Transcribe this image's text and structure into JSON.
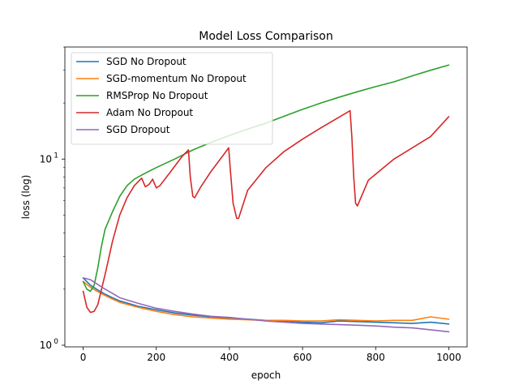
{
  "chart_data": {
    "type": "line",
    "title": "Model Loss Comparison",
    "xlabel": "epoch",
    "ylabel": "loss (log)",
    "yscale": "log",
    "xlim": [
      -50,
      1050
    ],
    "ylim": [
      0.98,
      40
    ],
    "grid": false,
    "legend_position": "top-left",
    "x_ticks": [
      0,
      200,
      400,
      600,
      800,
      1000
    ],
    "x_tick_labels": [
      "0",
      "200",
      "400",
      "600",
      "800",
      "1000"
    ],
    "y_ticks": [
      1,
      10
    ],
    "y_tick_label_bases": [
      "10",
      "10"
    ],
    "y_tick_label_exponents": [
      "0",
      "1"
    ],
    "series": [
      {
        "name": "SGD No Dropout",
        "color": "#1f77b4",
        "x": [
          0,
          20,
          40,
          60,
          80,
          100,
          150,
          200,
          250,
          300,
          350,
          400,
          450,
          500,
          550,
          600,
          650,
          700,
          750,
          800,
          850,
          900,
          950,
          1000
        ],
        "y": [
          2.3,
          2.1,
          1.98,
          1.88,
          1.8,
          1.73,
          1.62,
          1.55,
          1.49,
          1.45,
          1.42,
          1.4,
          1.38,
          1.36,
          1.35,
          1.33,
          1.32,
          1.35,
          1.34,
          1.33,
          1.32,
          1.31,
          1.33,
          1.3
        ]
      },
      {
        "name": "SGD-momentum No Dropout",
        "color": "#ff7f0e",
        "x": [
          0,
          20,
          40,
          60,
          80,
          100,
          150,
          200,
          250,
          300,
          350,
          400,
          450,
          500,
          550,
          600,
          650,
          700,
          750,
          800,
          850,
          900,
          950,
          1000
        ],
        "y": [
          2.2,
          2.05,
          1.94,
          1.85,
          1.77,
          1.7,
          1.6,
          1.52,
          1.46,
          1.42,
          1.4,
          1.38,
          1.37,
          1.36,
          1.36,
          1.35,
          1.35,
          1.37,
          1.36,
          1.35,
          1.36,
          1.36,
          1.42,
          1.38
        ]
      },
      {
        "name": "RMSProp No Dropout",
        "color": "#2ca02c",
        "x": [
          0,
          10,
          20,
          30,
          40,
          50,
          60,
          80,
          100,
          120,
          140,
          160,
          180,
          200,
          250,
          300,
          350,
          400,
          450,
          500,
          550,
          600,
          650,
          700,
          750,
          800,
          850,
          900,
          950,
          1000
        ],
        "y": [
          2.2,
          2.0,
          1.95,
          2.1,
          2.6,
          3.4,
          4.2,
          5.2,
          6.3,
          7.2,
          7.8,
          8.2,
          8.6,
          9.0,
          10.0,
          11.2,
          12.3,
          13.4,
          14.5,
          15.6,
          17.0,
          18.5,
          20.0,
          21.5,
          23.0,
          24.5,
          26.0,
          28.0,
          30.0,
          32.0
        ]
      },
      {
        "name": "Adam No Dropout",
        "color": "#d62728",
        "x": [
          0,
          10,
          20,
          30,
          40,
          60,
          80,
          100,
          120,
          140,
          160,
          170,
          180,
          190,
          200,
          210,
          240,
          270,
          288,
          293,
          300,
          305,
          320,
          350,
          380,
          398,
          402,
          410,
          420,
          425,
          450,
          500,
          550,
          600,
          650,
          700,
          730,
          735,
          740,
          745,
          750,
          780,
          850,
          950,
          1000
        ],
        "y": [
          1.95,
          1.6,
          1.5,
          1.52,
          1.65,
          2.4,
          3.6,
          5.0,
          6.2,
          7.2,
          7.9,
          7.1,
          7.3,
          7.8,
          7.0,
          7.2,
          8.6,
          10.3,
          11.2,
          8.0,
          6.3,
          6.2,
          7.0,
          8.6,
          10.3,
          11.5,
          9.0,
          5.8,
          4.8,
          4.8,
          6.8,
          9.0,
          11.0,
          12.8,
          14.7,
          16.8,
          18.2,
          13.0,
          8.0,
          5.8,
          5.6,
          7.7,
          10.0,
          13.2,
          16.9
        ]
      },
      {
        "name": "SGD Dropout",
        "color": "#9467bd",
        "x": [
          0,
          20,
          40,
          60,
          80,
          100,
          150,
          200,
          250,
          300,
          350,
          400,
          450,
          500,
          550,
          600,
          650,
          700,
          750,
          800,
          850,
          900,
          950,
          1000
        ],
        "y": [
          2.3,
          2.25,
          2.12,
          2.0,
          1.9,
          1.8,
          1.68,
          1.58,
          1.52,
          1.47,
          1.43,
          1.41,
          1.38,
          1.35,
          1.33,
          1.31,
          1.3,
          1.29,
          1.28,
          1.27,
          1.25,
          1.24,
          1.21,
          1.18
        ]
      }
    ]
  }
}
